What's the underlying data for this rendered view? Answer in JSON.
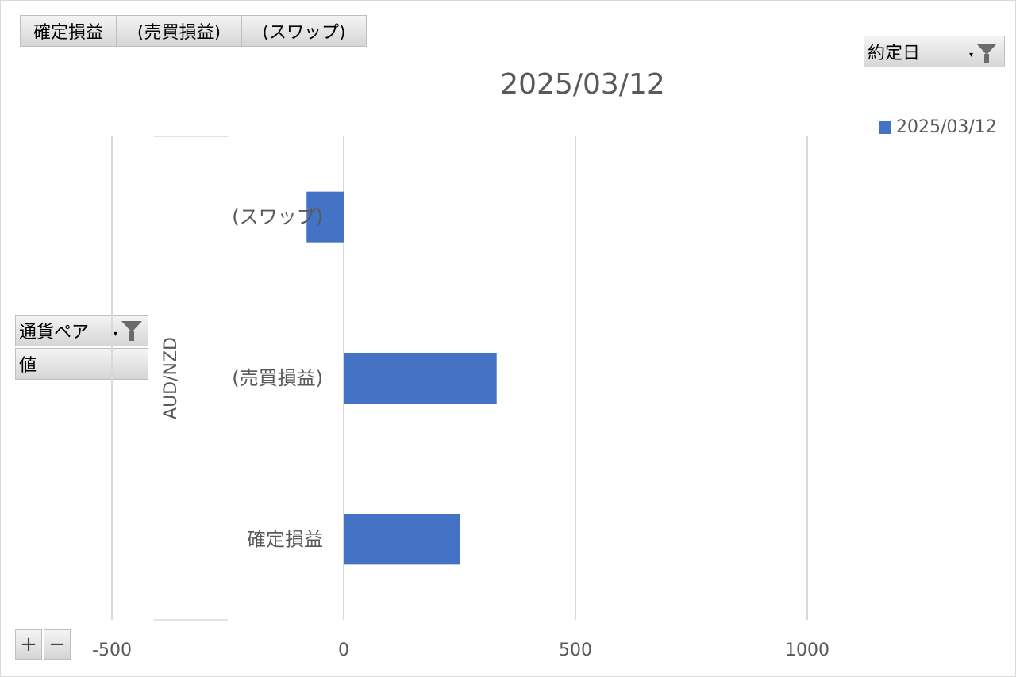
{
  "value_fields": [
    "確定損益",
    "(売買損益)",
    "(スワップ)"
  ],
  "filter_field": {
    "label": "約定日",
    "icon": "funnel-icon"
  },
  "row_field": {
    "label": "通貨ペア",
    "icon": "funnel-icon"
  },
  "values_label": "値",
  "zoom": {
    "plus": "+",
    "minus": "−"
  },
  "chart_data": {
    "type": "bar",
    "orientation": "horizontal",
    "title": "2025/03/12",
    "group_label": "AUD/NZD",
    "categories": [
      "(スワップ)",
      "(売買損益)",
      "確定損益"
    ],
    "series": [
      {
        "name": "2025/03/12",
        "values": [
          -80,
          330,
          250
        ],
        "color": "#4472c4"
      }
    ],
    "xlim": [
      -820,
      2200
    ],
    "xticks": [
      -500,
      0,
      500,
      1000,
      1500,
      2000
    ],
    "grid": true,
    "legend_position": "top-right"
  }
}
